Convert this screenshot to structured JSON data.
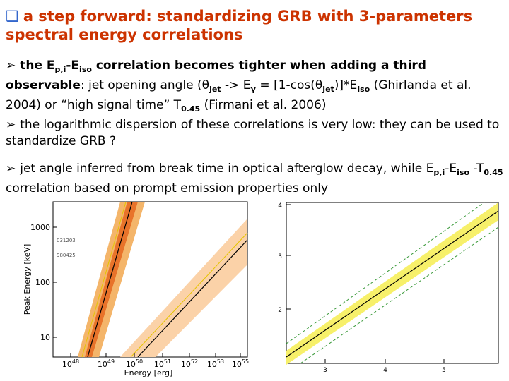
{
  "title": "a step forward: standardizing GRB  with 3-parameters spectral energy correlations",
  "bullets": [
    [
      "the E",
      "p,i",
      "-E",
      "iso",
      " correlation becomes tighter when adding a third ",
      "observable",
      ": jet opening angle (",
      "θ",
      "jet",
      " -> E",
      "γ",
      " = [1-cos(",
      "θ",
      "jet",
      ")]*E",
      "iso",
      " (Ghirlanda et al. 2004) or “high signal time” T",
      "0.45",
      " (Firmani et al. 2006)"
    ],
    [
      "the logarithmic dispersion of these correlations is very low: they can be used to standardize GRB ?"
    ],
    [
      "jet angle inferred from break time in optical afterglow decay, while E",
      "p,i",
      "-E",
      "iso",
      " -T",
      "0.45",
      " correlation based on prompt emission properties only"
    ]
  ],
  "figures": {
    "left": {
      "y_label": "Peak Energy  [keV]",
      "x_label": "Energy  [erg]",
      "yticks": [
        "1000",
        "100",
        "10"
      ],
      "xticks": [
        [
          "10",
          "48"
        ],
        [
          "10",
          "49"
        ],
        [
          "10",
          "50"
        ],
        [
          "10",
          "51"
        ],
        [
          "10",
          "52"
        ],
        [
          "10",
          "53"
        ],
        [
          "10",
          "55"
        ]
      ],
      "annotations": [
        "031203",
        "980425"
      ]
    },
    "right": {
      "yticks": [
        "4",
        "3",
        "2"
      ],
      "xticks": [
        "3",
        "4",
        "5"
      ]
    }
  }
}
